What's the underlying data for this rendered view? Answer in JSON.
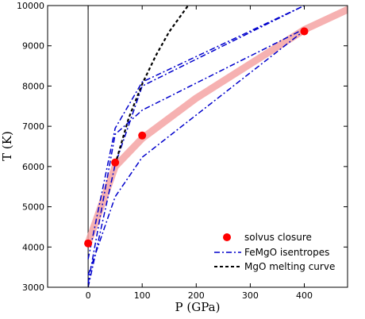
{
  "chart_data": {
    "type": "line",
    "xlabel": "P (GPa)",
    "ylabel": "T (K)",
    "xlim": [
      -75,
      480
    ],
    "ylim": [
      3000,
      10000
    ],
    "x_ticks": [
      0,
      100,
      200,
      300,
      400
    ],
    "y_ticks": [
      3000,
      4000,
      5000,
      6000,
      7000,
      8000,
      9000,
      10000
    ],
    "grid": false,
    "legend_position": "bottom-right",
    "vertical_line_x": 0,
    "series": [
      {
        "name": "solvus closure",
        "kind": "points",
        "color": "#ff0000",
        "x": [
          0,
          50,
          100,
          400
        ],
        "y": [
          4090,
          6100,
          6770,
          9360
        ]
      },
      {
        "name": "solvus closure fit",
        "kind": "band",
        "color": "#f4a3a3",
        "x": [
          0,
          50,
          100,
          200,
          300,
          400,
          480
        ],
        "y": [
          4100,
          6000,
          6700,
          7700,
          8550,
          9400,
          9900
        ]
      },
      {
        "name": "FeMgO isentropes",
        "kind": "line",
        "color": "#0000cc",
        "dash": "dashdot",
        "lines": [
          {
            "x": [
              0,
              50,
              100,
              400
            ],
            "y": [
              3300,
              5250,
              6230,
              9380
            ]
          },
          {
            "x": [
              0,
              50,
              100,
              400
            ],
            "y": [
              3100,
              6800,
              7400,
              9420
            ]
          },
          {
            "x": [
              0,
              50,
              100,
              400
            ],
            "y": [
              3700,
              6950,
              8100,
              10000
            ]
          },
          {
            "x": [
              0,
              50,
              100,
              400
            ],
            "y": [
              3000,
              6050,
              8000,
              10000
            ]
          }
        ]
      },
      {
        "name": "MgO melting curve",
        "kind": "line",
        "color": "#000000",
        "dash": "dashed",
        "x": [
          50,
          75,
          100,
          125,
          150,
          185
        ],
        "y": [
          6050,
          7200,
          8050,
          8750,
          9350,
          10000
        ]
      }
    ]
  }
}
